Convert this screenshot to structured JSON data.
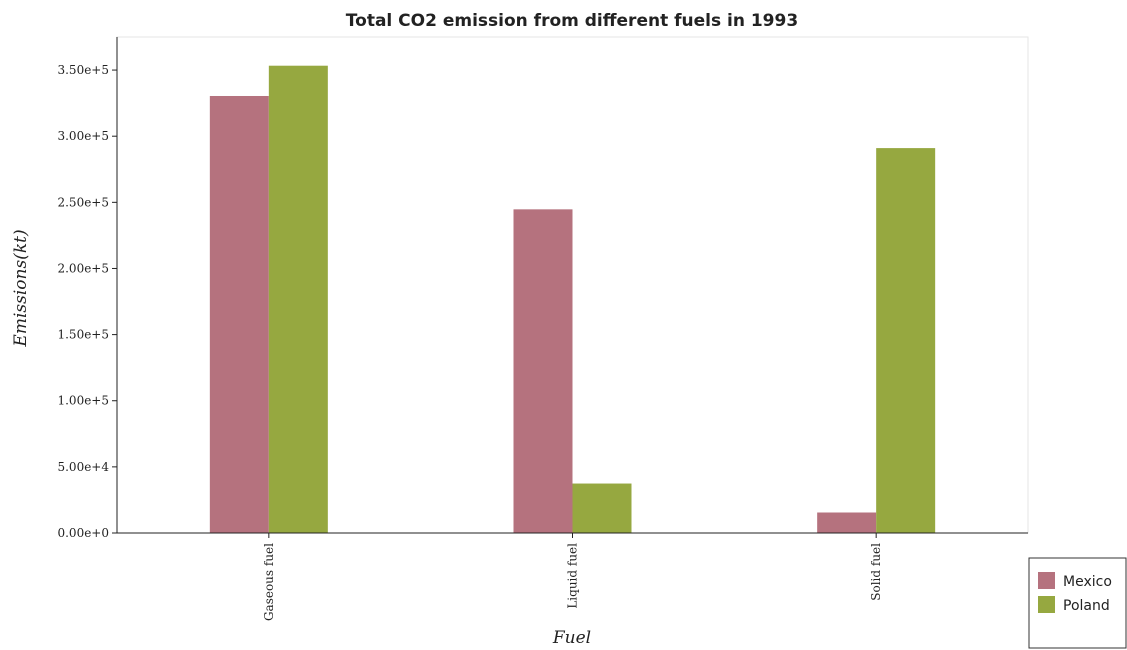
{
  "chart_data": {
    "type": "bar",
    "title": "Total CO2 emission from different fuels in 1993",
    "xlabel": "Fuel",
    "ylabel": "Emissions(kt)",
    "categories": [
      "Gaseous fuel",
      "Liquid fuel",
      "Solid fuel"
    ],
    "series": [
      {
        "name": "Mexico",
        "color": "#b5727e",
        "values": [
          330400,
          244700,
          15500
        ]
      },
      {
        "name": "Poland",
        "color": "#96a840",
        "values": [
          353300,
          37400,
          291000
        ]
      }
    ],
    "ylim": [
      0,
      375000
    ],
    "yticks": [
      0,
      50000,
      100000,
      150000,
      200000,
      250000,
      300000,
      350000
    ],
    "ytick_labels": [
      "0.00e+0",
      "5.00e+4",
      "1.00e+5",
      "1.50e+5",
      "2.00e+5",
      "2.50e+5",
      "3.00e+5",
      "3.50e+5"
    ],
    "grid": false,
    "legend_position": "bottom-right"
  }
}
